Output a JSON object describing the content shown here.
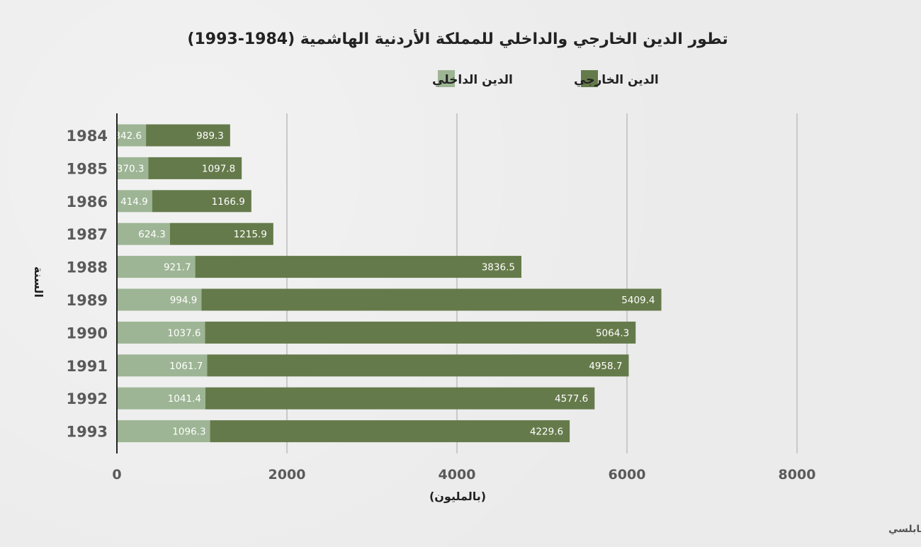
{
  "chart_data": {
    "type": "bar",
    "orientation": "horizontal",
    "stacked": true,
    "title": "تطور الدين الخارجي والداخلي للمملكة الأردنية الهاشمية (1984-1993)",
    "categories": [
      "1984",
      "1985",
      "1986",
      "1987",
      "1988",
      "1989",
      "1990",
      "1991",
      "1992",
      "1993"
    ],
    "series": [
      {
        "name": "الدين  الداخلي",
        "color": "#9db594",
        "values": [
          342.6,
          370.3,
          414.9,
          624.3,
          921.7,
          994.9,
          1037.6,
          1061.7,
          1041.4,
          1096.3
        ],
        "labels": [
          "342.6",
          "370.3",
          "414.9",
          "624.3",
          "921.7",
          "994.9",
          "1037.6",
          "1061.7",
          "1041.4",
          "1096.3"
        ]
      },
      {
        "name": "الدين الخارجي",
        "color": "#657a4a",
        "values": [
          989.3,
          1097.8,
          1166.9,
          1215.9,
          3836.5,
          5409.4,
          5064.3,
          4958.7,
          4577.6,
          4229.6
        ],
        "labels": [
          "989.3",
          "1097.8",
          "1166.9",
          "1215.9",
          "3836.5",
          "5409.4",
          "5064.3",
          "4958.7",
          "4577.6",
          "4229.6"
        ]
      }
    ],
    "xlim": [
      0,
      8000
    ],
    "xticks": [
      "0",
      "2000",
      "4000",
      "6000",
      "8000"
    ],
    "xlabel": "(بالمليون)",
    "ylabel": "السنة",
    "grid": "vertical",
    "legend_position": "top",
    "legend_order": [
      "الدين الخارجي",
      "الدين  الداخلي"
    ],
    "source": "المصدر: الأزمة المالية المزدوجة، محمد سعيد النابلسي"
  }
}
